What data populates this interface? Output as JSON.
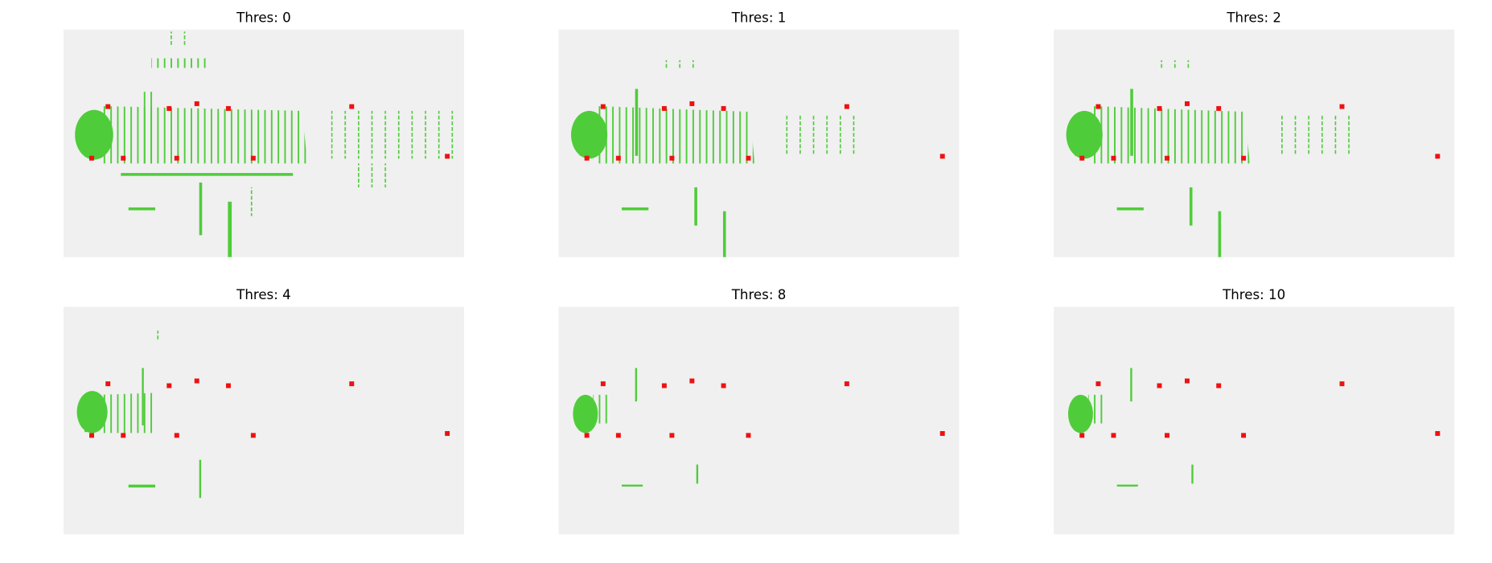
{
  "panels": [
    {
      "title": "Thres: 0"
    },
    {
      "title": "Thres: 1"
    },
    {
      "title": "Thres: 2"
    },
    {
      "title": "Thres: 4"
    },
    {
      "title": "Thres: 8"
    },
    {
      "title": "Thres: 10"
    }
  ]
}
